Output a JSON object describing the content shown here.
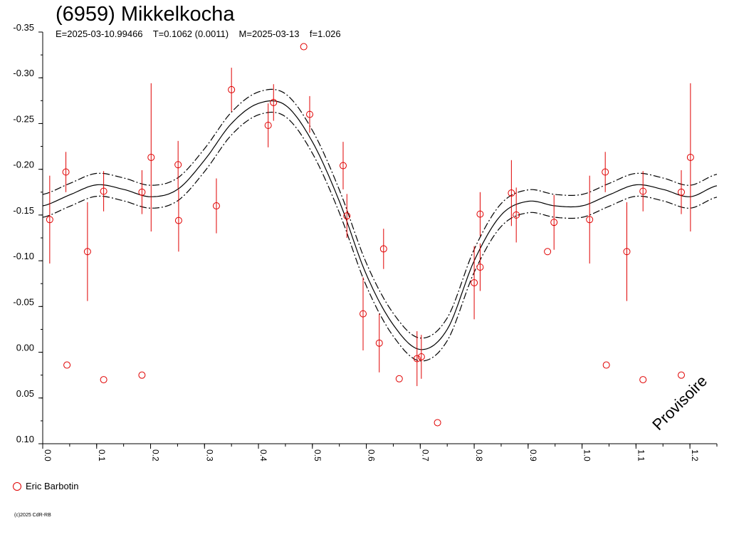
{
  "chart_data": {
    "type": "scatter",
    "title": "(6959) Mikkelkocha",
    "subtitle": "E=2025-03-10.99466    T=0.1062 (0.0011)    M=2025-03-13    f=1.026",
    "xlabel": "",
    "ylabel": "",
    "xlim": [
      0.0,
      1.25
    ],
    "ylim": [
      -0.35,
      0.1
    ],
    "y_inverted": true,
    "grid": false,
    "xticks": [
      "0.0",
      "0.1",
      "0.2",
      "0.3",
      "0.4",
      "0.5",
      "0.6",
      "0.7",
      "0.8",
      "0.9",
      "1.0",
      "1.1",
      "1.2"
    ],
    "yticks": [
      "-0.35",
      "-0.30",
      "-0.25",
      "-0.20",
      "-0.15",
      "-0.10",
      "-0.05",
      "0.00",
      "0.05",
      "0.10"
    ],
    "legend_position": "bottom-left",
    "series": [
      {
        "name": "Eric Barbotin",
        "color": "#e00000",
        "marker": "open-circle",
        "points": [
          {
            "x": 0.013,
            "y": -0.145,
            "err": 0.048
          },
          {
            "x": 0.043,
            "y": -0.197,
            "err": 0.022
          },
          {
            "x": 0.045,
            "y": 0.014
          },
          {
            "x": 0.083,
            "y": -0.11,
            "err": 0.054
          },
          {
            "x": 0.113,
            "y": -0.176,
            "err": 0.022
          },
          {
            "x": 0.113,
            "y": 0.03
          },
          {
            "x": 0.184,
            "y": -0.175,
            "err": 0.024
          },
          {
            "x": 0.184,
            "y": 0.025
          },
          {
            "x": 0.201,
            "y": -0.213,
            "err": 0.081
          },
          {
            "x": 0.251,
            "y": -0.205,
            "err": 0.026
          },
          {
            "x": 0.252,
            "y": -0.144,
            "err": 0.034
          },
          {
            "x": 0.322,
            "y": -0.16,
            "err": 0.03
          },
          {
            "x": 0.35,
            "y": -0.287,
            "err": 0.024
          },
          {
            "x": 0.418,
            "y": -0.248,
            "err": 0.024
          },
          {
            "x": 0.428,
            "y": -0.273,
            "err": 0.02
          },
          {
            "x": 0.484,
            "y": -0.334
          },
          {
            "x": 0.495,
            "y": -0.26,
            "err": 0.02
          },
          {
            "x": 0.557,
            "y": -0.204,
            "err": 0.026
          },
          {
            "x": 0.564,
            "y": -0.149,
            "err": 0.024
          },
          {
            "x": 0.594,
            "y": -0.042,
            "err": 0.04
          },
          {
            "x": 0.624,
            "y": -0.01,
            "err": 0.032
          },
          {
            "x": 0.632,
            "y": -0.113,
            "err": 0.022
          },
          {
            "x": 0.661,
            "y": 0.029
          },
          {
            "x": 0.694,
            "y": 0.007,
            "err": 0.03
          },
          {
            "x": 0.702,
            "y": 0.005,
            "err": 0.024
          },
          {
            "x": 0.732,
            "y": 0.077
          },
          {
            "x": 0.8,
            "y": -0.076,
            "err": 0.04
          },
          {
            "x": 0.811,
            "y": -0.151,
            "err": 0.024
          },
          {
            "x": 0.811,
            "y": -0.093,
            "err": 0.026
          },
          {
            "x": 0.869,
            "y": -0.174,
            "err": 0.036
          },
          {
            "x": 0.878,
            "y": -0.15,
            "err": 0.03
          },
          {
            "x": 0.936,
            "y": -0.11
          },
          {
            "x": 0.948,
            "y": -0.142,
            "err": 0.03
          },
          {
            "x": 1.014,
            "y": -0.145,
            "err": 0.048
          },
          {
            "x": 1.043,
            "y": -0.197,
            "err": 0.022
          },
          {
            "x": 1.045,
            "y": 0.014
          },
          {
            "x": 1.083,
            "y": -0.11,
            "err": 0.054
          },
          {
            "x": 1.113,
            "y": -0.176,
            "err": 0.022
          },
          {
            "x": 1.113,
            "y": 0.03
          },
          {
            "x": 1.184,
            "y": -0.175,
            "err": 0.024
          },
          {
            "x": 1.184,
            "y": 0.025
          },
          {
            "x": 1.201,
            "y": -0.213,
            "err": 0.081
          }
        ]
      }
    ],
    "fit": {
      "line_color": "#000000",
      "band_offset": 0.0125,
      "knots_x": [
        0.0,
        0.05,
        0.1,
        0.15,
        0.2,
        0.25,
        0.3,
        0.35,
        0.4,
        0.45,
        0.5,
        0.55,
        0.6,
        0.65,
        0.7,
        0.75,
        0.8,
        0.85,
        0.9,
        0.95,
        1.0,
        1.05,
        1.1,
        1.15,
        1.2,
        1.25
      ],
      "knots_y": [
        -0.16,
        -0.172,
        -0.183,
        -0.178,
        -0.17,
        -0.178,
        -0.21,
        -0.25,
        -0.272,
        -0.27,
        -0.23,
        -0.165,
        -0.085,
        -0.03,
        -0.003,
        -0.025,
        -0.1,
        -0.15,
        -0.165,
        -0.16,
        -0.16,
        -0.172,
        -0.183,
        -0.178,
        -0.17,
        -0.182
      ]
    }
  },
  "legend": {
    "label": "Eric Barbotin"
  },
  "copyright": "(c)2025 CdR-RB",
  "watermark": "Provisoire"
}
